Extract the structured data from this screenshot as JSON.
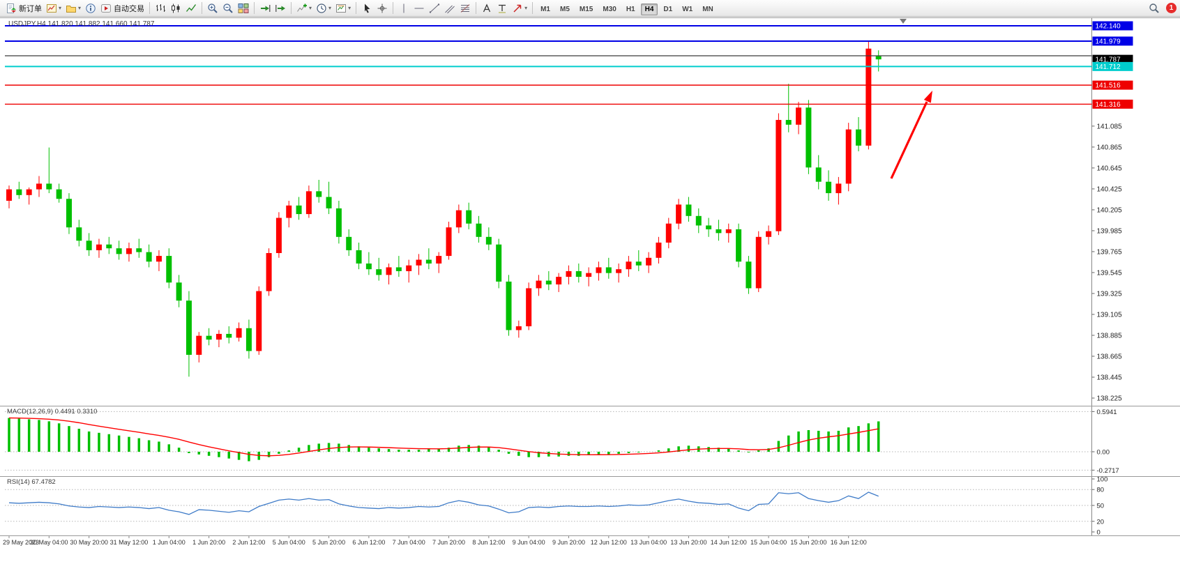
{
  "toolbar": {
    "new_order_label": "新订单",
    "autotrading_label": "自动交易",
    "timeframes": [
      "M1",
      "M5",
      "M15",
      "M30",
      "H1",
      "H4",
      "D1",
      "W1",
      "MN"
    ],
    "active_timeframe": "H4",
    "notification_count": "1",
    "icons": [
      "new-order-icon",
      "new-chart-icon",
      "profiles-icon",
      "data-window-icon",
      "autotrading-icon",
      "bar-chart-icon",
      "candlestick-icon",
      "line-chart-icon",
      "zoom-in-icon",
      "zoom-out-icon",
      "tile-windows-icon",
      "auto-scroll-icon",
      "chart-shift-icon",
      "indicators-icon",
      "periods-icon",
      "templates-icon",
      "cursor-icon",
      "crosshair-icon",
      "vertical-line-icon",
      "horizontal-line-icon",
      "trendline-icon",
      "channel-icon",
      "fibonacci-icon",
      "text-icon",
      "text-label-icon",
      "arrows-icon",
      "search-icon",
      "notification-badge"
    ]
  },
  "chart": {
    "title": "USDJPY,H4 141.820 141.882 141.660 141.787",
    "symbol": "USDJPY",
    "period": "H4",
    "price_axis_ticks": [
      "141.085",
      "140.865",
      "140.645",
      "140.425",
      "140.205",
      "139.985",
      "139.765",
      "139.545",
      "139.325",
      "139.105",
      "138.885",
      "138.665",
      "138.445",
      "138.225"
    ],
    "lines": [
      {
        "label": "142.140",
        "price": 142.14,
        "color": "#0000E6",
        "width": 2,
        "name": "resistance-line-142140"
      },
      {
        "label": "141.979",
        "price": 141.979,
        "color": "#0000E6",
        "width": 2,
        "name": "resistance-line-141979"
      },
      {
        "label": null,
        "price": 141.825,
        "color": "#3a3a3a",
        "width": 1.2,
        "name": "open-price-line"
      },
      {
        "label": "141.787",
        "price": 141.787,
        "color": "#000000",
        "box_only": true,
        "name": "bid-price-marker"
      },
      {
        "label": "141.712",
        "price": 141.712,
        "color": "#00CDCD",
        "width": 2,
        "name": "cyan-level-line"
      },
      {
        "label": "141.516",
        "price": 141.516,
        "color": "#EE0000",
        "width": 1.4,
        "name": "red-level-line-141516"
      },
      {
        "label": "141.316",
        "price": 141.316,
        "color": "#EE0000",
        "width": 1.4,
        "name": "red-level-line-141316"
      }
    ],
    "colors": {
      "bull": "#FF0000",
      "bear": "#00C000",
      "macd_bar": "#00C000",
      "macd_signal": "#FF0000",
      "rsi": "#3E7BC8",
      "axis_text": "#222222",
      "grid_dotted": "#b5b5b5",
      "pane_border": "#999999",
      "arrow": "#FF0000"
    }
  },
  "macd": {
    "label": "MACD(12,26,9) 0.4491 0.3310",
    "scale_levels": [
      {
        "label": "0.5941",
        "value": 0.5941
      },
      {
        "label": "0.00",
        "value": 0.0
      },
      {
        "label": "-0.2717",
        "value": -0.2717
      }
    ]
  },
  "rsi": {
    "label": "RSI(14) 67.4782",
    "scale_levels": [
      {
        "label": "100",
        "value": 100,
        "dotted": false
      },
      {
        "label": "80",
        "value": 80,
        "dotted": true
      },
      {
        "label": "50",
        "value": 50,
        "dotted": true
      },
      {
        "label": "20",
        "value": 20,
        "dotted": true
      },
      {
        "label": "0",
        "value": 0,
        "dotted": false
      }
    ]
  },
  "annotations": {
    "arrow": {
      "color": "#FF0000",
      "direction": "up-right"
    }
  },
  "chart_data": {
    "type": "candlestick",
    "symbol": "USDJPY",
    "timeframe": "H4",
    "title": "USDJPY,H4",
    "ohlc_current": {
      "open": 141.82,
      "high": 141.882,
      "low": 141.66,
      "close": 141.787
    },
    "y_range": [
      138.16,
      142.22
    ],
    "levels": {
      "resistance": [
        142.14,
        141.979
      ],
      "support": [
        141.516,
        141.316
      ],
      "other": [
        141.712
      ]
    },
    "x_labels": [
      "29 May 2023",
      "30 May 04:00",
      "30 May 20:00",
      "31 May 12:00",
      "1 Jun 04:00",
      "1 Jun 20:00",
      "2 Jun 12:00",
      "5 Jun 04:00",
      "5 Jun 20:00",
      "6 Jun 12:00",
      "7 Jun 04:00",
      "7 Jun 20:00",
      "8 Jun 12:00",
      "9 Jun 04:00",
      "9 Jun 20:00",
      "12 Jun 12:00",
      "13 Jun 04:00",
      "13 Jun 20:00",
      "14 Jun 12:00",
      "15 Jun 04:00",
      "15 Jun 20:00",
      "16 Jun 12:00"
    ],
    "candles": [
      [
        140.3,
        140.46,
        140.22,
        140.42
      ],
      [
        140.42,
        140.5,
        140.32,
        140.36
      ],
      [
        140.36,
        140.44,
        140.26,
        140.42
      ],
      [
        140.42,
        140.56,
        140.34,
        140.48
      ],
      [
        140.48,
        140.86,
        140.38,
        140.42
      ],
      [
        140.42,
        140.48,
        140.28,
        140.32
      ],
      [
        140.32,
        140.38,
        139.95,
        140.02
      ],
      [
        140.02,
        140.1,
        139.82,
        139.88
      ],
      [
        139.88,
        139.96,
        139.72,
        139.78
      ],
      [
        139.78,
        139.9,
        139.7,
        139.84
      ],
      [
        139.84,
        139.92,
        139.74,
        139.8
      ],
      [
        139.8,
        139.88,
        139.68,
        139.74
      ],
      [
        139.74,
        139.86,
        139.66,
        139.8
      ],
      [
        139.8,
        139.9,
        139.7,
        139.76
      ],
      [
        139.76,
        139.84,
        139.6,
        139.66
      ],
      [
        139.66,
        139.78,
        139.56,
        139.72
      ],
      [
        139.72,
        139.8,
        139.38,
        139.44
      ],
      [
        139.44,
        139.52,
        139.18,
        139.25
      ],
      [
        139.25,
        139.35,
        138.45,
        138.68
      ],
      [
        138.68,
        138.92,
        138.6,
        138.88
      ],
      [
        138.88,
        138.96,
        138.78,
        138.84
      ],
      [
        138.84,
        138.94,
        138.76,
        138.9
      ],
      [
        138.9,
        138.98,
        138.8,
        138.86
      ],
      [
        138.86,
        139.02,
        138.82,
        138.96
      ],
      [
        138.96,
        139.05,
        138.64,
        138.72
      ],
      [
        138.72,
        139.4,
        138.68,
        139.35
      ],
      [
        139.35,
        139.8,
        139.3,
        139.75
      ],
      [
        139.75,
        140.18,
        139.7,
        140.12
      ],
      [
        140.12,
        140.3,
        140.02,
        140.25
      ],
      [
        140.25,
        140.34,
        140.1,
        140.16
      ],
      [
        140.16,
        140.46,
        140.12,
        140.4
      ],
      [
        140.4,
        140.52,
        140.28,
        140.34
      ],
      [
        140.34,
        140.5,
        140.16,
        140.22
      ],
      [
        140.22,
        140.3,
        139.85,
        139.92
      ],
      [
        139.92,
        140.0,
        139.72,
        139.78
      ],
      [
        139.78,
        139.86,
        139.58,
        139.64
      ],
      [
        139.64,
        139.76,
        139.52,
        139.58
      ],
      [
        139.58,
        139.7,
        139.46,
        139.52
      ],
      [
        139.52,
        139.64,
        139.42,
        139.6
      ],
      [
        139.6,
        139.72,
        139.5,
        139.56
      ],
      [
        139.56,
        139.68,
        139.44,
        139.62
      ],
      [
        139.62,
        139.74,
        139.52,
        139.68
      ],
      [
        139.68,
        139.8,
        139.58,
        139.64
      ],
      [
        139.64,
        139.76,
        139.54,
        139.72
      ],
      [
        139.72,
        140.08,
        139.68,
        140.02
      ],
      [
        140.02,
        140.26,
        139.96,
        140.2
      ],
      [
        140.2,
        140.28,
        140.0,
        140.06
      ],
      [
        140.06,
        140.14,
        139.86,
        139.92
      ],
      [
        139.92,
        140.02,
        139.78,
        139.84
      ],
      [
        139.84,
        139.9,
        139.38,
        139.45
      ],
      [
        139.45,
        139.52,
        138.88,
        138.94
      ],
      [
        138.94,
        139.04,
        138.86,
        138.98
      ],
      [
        138.98,
        139.44,
        138.94,
        139.38
      ],
      [
        139.38,
        139.52,
        139.3,
        139.46
      ],
      [
        139.46,
        139.56,
        139.36,
        139.42
      ],
      [
        139.42,
        139.54,
        139.34,
        139.5
      ],
      [
        139.5,
        139.62,
        139.42,
        139.56
      ],
      [
        139.56,
        139.64,
        139.44,
        139.5
      ],
      [
        139.5,
        139.6,
        139.4,
        139.54
      ],
      [
        139.54,
        139.66,
        139.46,
        139.6
      ],
      [
        139.6,
        139.7,
        139.48,
        139.54
      ],
      [
        139.54,
        139.64,
        139.44,
        139.58
      ],
      [
        139.58,
        139.72,
        139.5,
        139.66
      ],
      [
        139.66,
        139.78,
        139.56,
        139.62
      ],
      [
        139.62,
        139.76,
        139.54,
        139.7
      ],
      [
        139.7,
        139.92,
        139.64,
        139.86
      ],
      [
        139.86,
        140.12,
        139.8,
        140.06
      ],
      [
        140.06,
        140.32,
        140.0,
        140.26
      ],
      [
        140.26,
        140.34,
        140.08,
        140.14
      ],
      [
        140.14,
        140.22,
        139.96,
        140.04
      ],
      [
        140.04,
        140.12,
        139.92,
        140.0
      ],
      [
        140.0,
        140.1,
        139.88,
        139.96
      ],
      [
        139.96,
        140.06,
        139.86,
        140.0
      ],
      [
        140.0,
        140.06,
        139.6,
        139.66
      ],
      [
        139.66,
        139.72,
        139.32,
        139.38
      ],
      [
        139.38,
        139.98,
        139.34,
        139.92
      ],
      [
        139.92,
        140.04,
        139.84,
        139.98
      ],
      [
        139.98,
        141.22,
        139.94,
        141.15
      ],
      [
        141.15,
        141.53,
        141.02,
        141.1
      ],
      [
        141.1,
        141.34,
        141.0,
        141.28
      ],
      [
        141.28,
        141.36,
        140.58,
        140.65
      ],
      [
        140.65,
        140.78,
        140.42,
        140.5
      ],
      [
        140.5,
        140.62,
        140.3,
        140.38
      ],
      [
        140.38,
        140.55,
        140.26,
        140.48
      ],
      [
        140.48,
        141.12,
        140.4,
        141.05
      ],
      [
        141.05,
        141.18,
        140.82,
        140.88
      ],
      [
        140.88,
        141.98,
        140.84,
        141.9
      ],
      [
        141.82,
        141.882,
        141.66,
        141.787
      ]
    ],
    "macd_histogram": [
      0.5,
      0.49,
      0.48,
      0.47,
      0.45,
      0.42,
      0.38,
      0.34,
      0.3,
      0.28,
      0.26,
      0.24,
      0.22,
      0.2,
      0.17,
      0.15,
      0.11,
      0.06,
      -0.02,
      -0.04,
      -0.06,
      -0.08,
      -0.1,
      -0.12,
      -0.14,
      -0.12,
      -0.08,
      -0.03,
      0.02,
      0.06,
      0.1,
      0.12,
      0.13,
      0.12,
      0.1,
      0.08,
      0.06,
      0.05,
      0.04,
      0.03,
      0.03,
      0.03,
      0.04,
      0.04,
      0.06,
      0.09,
      0.1,
      0.09,
      0.07,
      0.03,
      -0.03,
      -0.06,
      -0.08,
      -0.08,
      -0.07,
      -0.07,
      -0.06,
      -0.06,
      -0.05,
      -0.04,
      -0.04,
      -0.03,
      -0.02,
      -0.01,
      0.0,
      0.02,
      0.05,
      0.08,
      0.09,
      0.08,
      0.07,
      0.06,
      0.05,
      0.02,
      -0.01,
      0.02,
      0.05,
      0.16,
      0.24,
      0.3,
      0.32,
      0.31,
      0.3,
      0.31,
      0.36,
      0.38,
      0.42,
      0.4491
    ],
    "macd_current": {
      "macd": 0.4491,
      "signal": 0.331
    },
    "rsi": [
      55,
      54,
      55,
      56,
      55,
      53,
      49,
      47,
      46,
      48,
      47,
      46,
      47,
      46,
      44,
      46,
      41,
      38,
      33,
      42,
      41,
      39,
      37,
      40,
      38,
      48,
      54,
      60,
      62,
      60,
      63,
      60,
      61,
      53,
      49,
      46,
      45,
      44,
      46,
      45,
      46,
      48,
      47,
      48,
      55,
      59,
      56,
      51,
      49,
      43,
      36,
      38,
      46,
      47,
      46,
      48,
      49,
      48,
      48,
      49,
      48,
      49,
      51,
      50,
      51,
      55,
      59,
      62,
      58,
      55,
      54,
      52,
      53,
      45,
      40,
      52,
      53,
      74,
      72,
      74,
      63,
      59,
      56,
      59,
      68,
      63,
      75,
      67.4782
    ],
    "rsi_current": 67.4782
  }
}
